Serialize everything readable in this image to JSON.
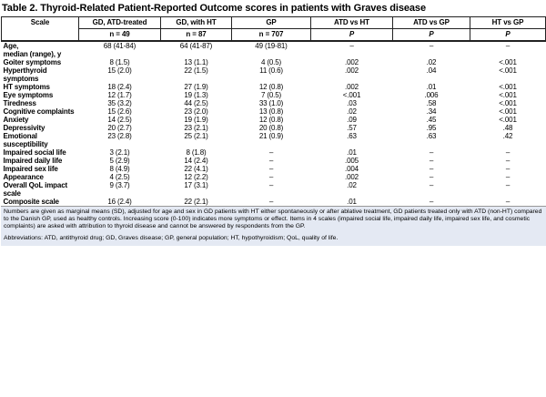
{
  "title": "Table 2. Thyroid-Related Patient-Reported Outcome scores in patients with Graves disease",
  "colors": {
    "footnote_background": "#e4e9f3",
    "table_border": "#222222",
    "text": "#000000"
  },
  "table": {
    "columns": [
      {
        "label": "Scale",
        "sub": ""
      },
      {
        "label": "GD, ATD-treated",
        "sub": "n = 49"
      },
      {
        "label": "GD, with HT",
        "sub": "n = 87"
      },
      {
        "label": "GP",
        "sub": "n = 707"
      },
      {
        "label": "ATD vs HT",
        "sub": "P"
      },
      {
        "label": "ATD vs GP",
        "sub": "P"
      },
      {
        "label": "HT vs GP",
        "sub": "P"
      }
    ],
    "rows": [
      {
        "label": "Age,",
        "label2": "median (range), y",
        "values": [
          "68 (41-84)",
          "64 (41-87)",
          "49 (19-81)",
          "–",
          "–",
          "–"
        ]
      },
      {
        "label": "Goiter symptoms",
        "label2": "",
        "values": [
          "8 (1.5)",
          "13 (1.1)",
          "4 (0.5)",
          ".002",
          ".02",
          "<.001"
        ]
      },
      {
        "label": "Hyperthyroid",
        "label2": "symptoms",
        "values": [
          "15 (2.0)",
          "22 (1.5)",
          "11 (0.6)",
          ".002",
          ".04",
          "<.001"
        ]
      },
      {
        "label": "HT symptoms",
        "label2": "",
        "values": [
          "18 (2.4)",
          "27 (1.9)",
          "12 (0.8)",
          ".002",
          ".01",
          "<.001"
        ]
      },
      {
        "label": "Eye symptoms",
        "label2": "",
        "values": [
          "12 (1.7)",
          "19 (1.3)",
          "7 (0.5)",
          "<.001",
          ".006",
          "<.001"
        ]
      },
      {
        "label": "Tiredness",
        "label2": "",
        "values": [
          "35 (3.2)",
          "44 (2.5)",
          "33 (1.0)",
          ".03",
          ".58",
          "<.001"
        ]
      },
      {
        "label": "Cognitive complaints",
        "label2": "",
        "values": [
          "15 (2.6)",
          "23 (2.0)",
          "13 (0.8)",
          ".02",
          ".34",
          "<.001"
        ]
      },
      {
        "label": "Anxiety",
        "label2": "",
        "values": [
          "14 (2.5)",
          "19 (1.9)",
          "12 (0.8)",
          ".09",
          ".45",
          "<.001"
        ]
      },
      {
        "label": "Depressivity",
        "label2": "",
        "values": [
          "20 (2.7)",
          "23 (2.1)",
          "20 (0.8)",
          ".57",
          ".95",
          ".48"
        ]
      },
      {
        "label": "Emotional",
        "label2": "susceptibility",
        "values": [
          "23 (2.8)",
          "25 (2.1)",
          "21 (0.9)",
          ".63",
          ".63",
          ".42"
        ]
      },
      {
        "label": "Impaired social life",
        "label2": "",
        "values": [
          "3 (2.1)",
          "8 (1.8)",
          "–",
          ".01",
          "–",
          "–"
        ]
      },
      {
        "label": "Impaired daily life",
        "label2": "",
        "values": [
          "5 (2.9)",
          "14 (2.4)",
          "–",
          ".005",
          "–",
          "–"
        ]
      },
      {
        "label": "Impaired sex life",
        "label2": "",
        "values": [
          "8 (4.9)",
          "22 (4.1)",
          "–",
          ".004",
          "–",
          "–"
        ]
      },
      {
        "label": "Appearance",
        "label2": "",
        "values": [
          "4 (2.5)",
          "12 (2.2)",
          "–",
          ".002",
          "–",
          "–"
        ]
      },
      {
        "label": "Overall QoL impact",
        "label2": "scale",
        "values": [
          "9 (3.7)",
          "17 (3.1)",
          "–",
          ".02",
          "–",
          "–"
        ]
      },
      {
        "label": "Composite scale",
        "label2": "",
        "values": [
          "16 (2.4)",
          "22 (2.1)",
          "–",
          ".01",
          "–",
          "–"
        ]
      }
    ]
  },
  "footnote": "Numbers are given as marginal means (SD), adjusted for age and sex in GD patients with HT either spontaneously or after ablative treatment, GD patients treated only with ATD (non-HT) compared to the Danish GP, used as healthy controls. Increasing score (0-100) indicates more symptoms or effect. Items in 4 scales (impaired social life, impaired daily life, impaired sex life, and cosmetic complaints) are asked with attribution to thyroid disease and cannot be answered by respondents from the GP.",
  "abbreviations": "Abbreviations: ATD, antithyroid drug; GD, Graves disease; GP, general population; HT, hypothyroidism; QoL, quality of life."
}
